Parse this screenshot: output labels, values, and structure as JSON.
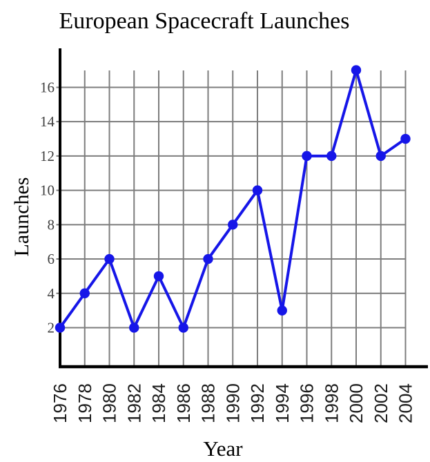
{
  "chart_data": {
    "type": "line",
    "title": "European Spacecraft Launches",
    "xlabel": "Year",
    "ylabel": "Launches",
    "x": [
      1976,
      1978,
      1980,
      1982,
      1984,
      1986,
      1988,
      1990,
      1992,
      1994,
      1996,
      1998,
      2000,
      2002,
      2004
    ],
    "values": [
      2,
      4,
      6,
      2,
      5,
      2,
      6,
      8,
      10,
      3,
      12,
      12,
      17,
      12,
      13
    ],
    "series": [
      {
        "name": "Launches",
        "values": [
          2,
          4,
          6,
          2,
          5,
          2,
          6,
          8,
          10,
          3,
          12,
          12,
          17,
          12,
          13
        ]
      }
    ],
    "yticks": [
      2,
      4,
      6,
      8,
      10,
      12,
      14,
      16
    ],
    "xticks": [
      1976,
      1978,
      1980,
      1982,
      1984,
      1986,
      1988,
      1990,
      1992,
      1994,
      1996,
      1998,
      2000,
      2002,
      2004
    ],
    "ylim": [
      0,
      18.5
    ],
    "xlim": [
      1976,
      2006
    ],
    "grid": true,
    "legend_position": "none",
    "marker": "circle",
    "colors": {
      "line": "#1616e8",
      "marker": "#1616e8",
      "grid": "#7d7d7d",
      "axis": "#000000",
      "ytick_text": "#3f3f3f",
      "xtick_text": "#1b1b1b",
      "title_text": "#000000"
    }
  }
}
